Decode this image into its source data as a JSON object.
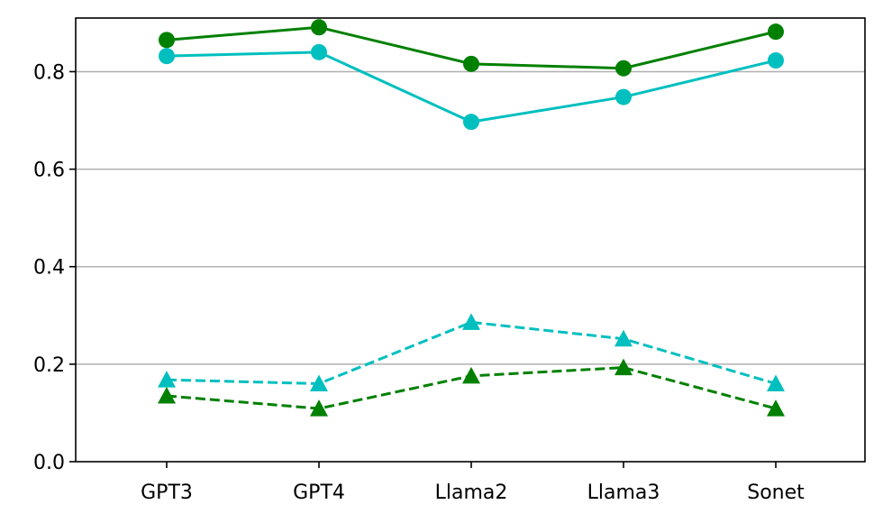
{
  "chart_data": {
    "type": "line",
    "title": "",
    "xlabel": "",
    "ylabel": "",
    "categories": [
      "GPT3",
      "GPT4",
      "Llama2",
      "Llama3",
      "Sonet"
    ],
    "ylim": [
      0.0,
      0.91
    ],
    "yticks": [
      0.0,
      0.2,
      0.4,
      0.6,
      0.8
    ],
    "ytick_labels": [
      "0.0",
      "0.2",
      "0.4",
      "0.6",
      "0.8"
    ],
    "grid": "y-major",
    "legend": "none",
    "series": [
      {
        "values": [
          0.865,
          0.891,
          0.816,
          0.807,
          0.882
        ],
        "color": "#008000",
        "marker": "circle",
        "linestyle": "solid"
      },
      {
        "values": [
          0.832,
          0.84,
          0.697,
          0.748,
          0.823
        ],
        "color": "#00bfbf",
        "marker": "circle",
        "linestyle": "solid"
      },
      {
        "values": [
          0.168,
          0.16,
          0.286,
          0.252,
          0.16
        ],
        "color": "#00bfbf",
        "marker": "triangle",
        "linestyle": "dashed"
      },
      {
        "values": [
          0.135,
          0.109,
          0.176,
          0.193,
          0.109
        ],
        "color": "#008000",
        "marker": "triangle",
        "linestyle": "dashed"
      }
    ]
  }
}
